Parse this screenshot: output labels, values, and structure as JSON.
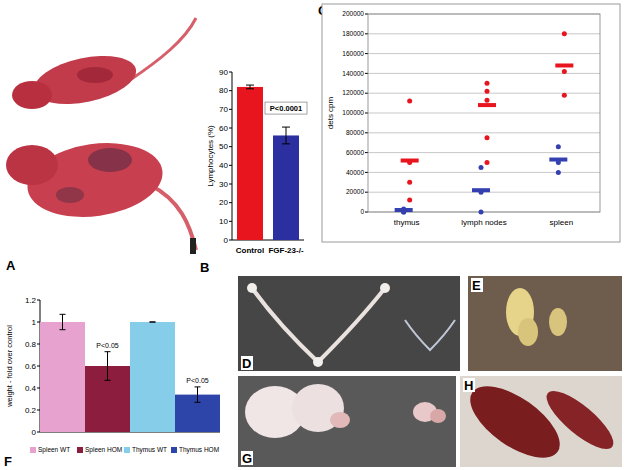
{
  "panel_labels": [
    "A",
    "B",
    "C",
    "D",
    "E",
    "F",
    "G",
    "H"
  ],
  "chart_data": [
    {
      "type": "bar",
      "y_label": "Lymphocytes (%)",
      "categories": [
        "Control",
        "FGF-23-/-"
      ],
      "values": [
        82,
        56
      ],
      "errors": [
        1,
        4.5
      ],
      "colors": [
        "#e8141e",
        "#2b2fa0"
      ],
      "ylim": [
        0,
        90
      ],
      "yticks": [
        0,
        10,
        20,
        30,
        40,
        50,
        60,
        70,
        80,
        90
      ],
      "grid": false,
      "annotations": [
        "P<0.0001"
      ]
    },
    {
      "type": "scatter",
      "y_label": "dets cpm",
      "categories": [
        "thymus",
        "lymph nodes",
        "spleen"
      ],
      "series": [
        {
          "color": "#e8141e",
          "marker": "circle",
          "values": [
            [
              112000,
              50000,
              30000,
              12000
            ],
            [
              130000,
              122000,
              113000,
              75000,
              50000
            ],
            [
              180000,
              142000,
              118000
            ]
          ],
          "means": [
            52000,
            108000,
            148000
          ]
        },
        {
          "color": "#3440b0",
          "marker": "circle",
          "values": [
            [
              3000,
              0,
              0
            ],
            [
              45000,
              20000,
              0
            ],
            [
              66000,
              50000,
              40000
            ]
          ],
          "means": [
            2000,
            22000,
            53000
          ]
        }
      ],
      "ylim": [
        0,
        200000
      ],
      "yticks": [
        0,
        20000,
        40000,
        60000,
        80000,
        100000,
        120000,
        140000,
        160000,
        180000,
        200000
      ],
      "grid": true
    },
    {
      "type": "bar",
      "y_label": "weight - fold over control",
      "categories": [
        null
      ],
      "series": [
        {
          "name": "Spleen WT",
          "color": "#e8a2cf",
          "values": [
            1
          ],
          "errors": [
            0.07
          ]
        },
        {
          "name": "Spleen HOM",
          "color": "#8c1d3f",
          "values": [
            0.6
          ],
          "errors": [
            0.13
          ]
        },
        {
          "name": "Thymus WT",
          "color": "#86cdea",
          "values": [
            1
          ],
          "errors": [
            0
          ]
        },
        {
          "name": "Thymus HOM",
          "color": "#2d44a8",
          "values": [
            0.34
          ],
          "errors": [
            0.07
          ]
        }
      ],
      "ylim": [
        0,
        1.2
      ],
      "yticks": [
        0,
        0.2,
        0.4,
        0.6,
        0.8,
        1,
        1.2
      ],
      "grid": false,
      "legend": "bottom",
      "annotations": [
        "P<0.05",
        "P<0.05"
      ]
    }
  ]
}
